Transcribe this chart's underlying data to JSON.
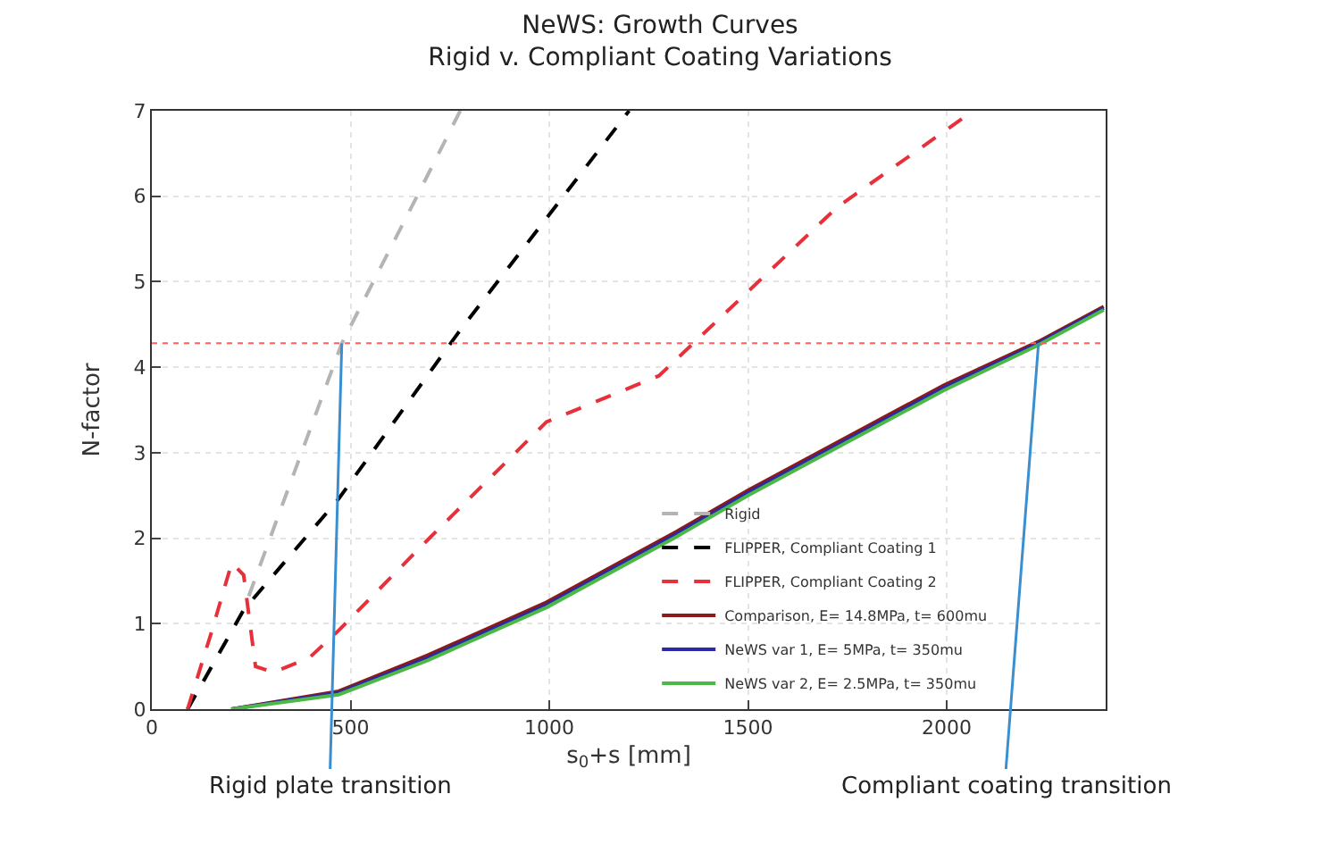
{
  "chart_data": {
    "type": "line",
    "title": "NeWS: Growth Curves\nRigid v. Compliant Coating Variations",
    "xlabel": "s$_{0}$+s [mm]",
    "ylabel": "N-factor",
    "xlim": [
      0,
      2400
    ],
    "xticks": [
      0,
      500,
      1000,
      1500,
      2000
    ],
    "ylim": [
      0,
      7
    ],
    "yticks": [
      0,
      1,
      2,
      3,
      4,
      5,
      6,
      7
    ],
    "grid": true,
    "legend": "bottom right",
    "marker": "none",
    "series": [
      {
        "name": "Rigid",
        "color": "#b4b4b4",
        "line_style": "dashed",
        "x": [
          90,
          231,
          478,
          664,
          776
        ],
        "values": [
          0,
          1.16,
          4.28,
          5.97,
          7
        ]
      },
      {
        "name": "FLIPPER, Compliant Coating 1",
        "color": "#000000",
        "line_style": "dashed",
        "x": [
          90,
          231,
          470,
          769,
          1201
        ],
        "values": [
          0,
          1.16,
          2.46,
          4.39,
          7
        ]
      },
      {
        "name": "FLIPPER, Compliant Coating 2",
        "color": "#e8303a",
        "line_style": "dashed",
        "x": [
          90,
          150,
          201,
          231,
          261,
          306,
          396,
          470,
          694,
          993,
          1276,
          1724,
          2067
        ],
        "values": [
          0,
          0.9,
          1.71,
          1.57,
          0.5,
          0.43,
          0.6,
          0.92,
          1.98,
          3.36,
          3.9,
          5.87,
          7
        ]
      },
      {
        "name": "Comparison, E= 14.8MPa, t= 600mu",
        "color": "#8b1a1a",
        "line_style": "solid",
        "x": [
          200,
          470,
          694,
          993,
          1321,
          1500,
          1993,
          2231,
          2395
        ],
        "values": [
          0,
          0.21,
          0.63,
          1.25,
          2.08,
          2.56,
          3.79,
          4.3,
          4.71
        ]
      },
      {
        "name": "NeWS var 1, E= 5MPa, t= 350mu",
        "color": "#2a2aa8",
        "line_style": "solid",
        "x": [
          200,
          470,
          694,
          993,
          1321,
          1500,
          1993,
          2231,
          2395
        ],
        "values": [
          0,
          0.19,
          0.6,
          1.22,
          2.05,
          2.53,
          3.76,
          4.28,
          4.69
        ]
      },
      {
        "name": "NeWS var 2, E= 2.5MPa, t= 350mu",
        "color": "#4cb847",
        "line_style": "solid",
        "x": [
          200,
          470,
          694,
          993,
          1321,
          1500,
          1993,
          2231,
          2395
        ],
        "values": [
          0,
          0.17,
          0.57,
          1.19,
          2.02,
          2.5,
          3.73,
          4.26,
          4.67
        ]
      }
    ],
    "ref_lines": [
      {
        "axis": "y",
        "value": 4.28,
        "color": "#ff6060",
        "line_style": "dotted"
      }
    ],
    "annotations": [
      {
        "text": "Rigid plate transition",
        "x": 478,
        "y": 4.28
      },
      {
        "text": "Compliant coating transition",
        "x": 2231,
        "y": 4.28
      }
    ]
  }
}
